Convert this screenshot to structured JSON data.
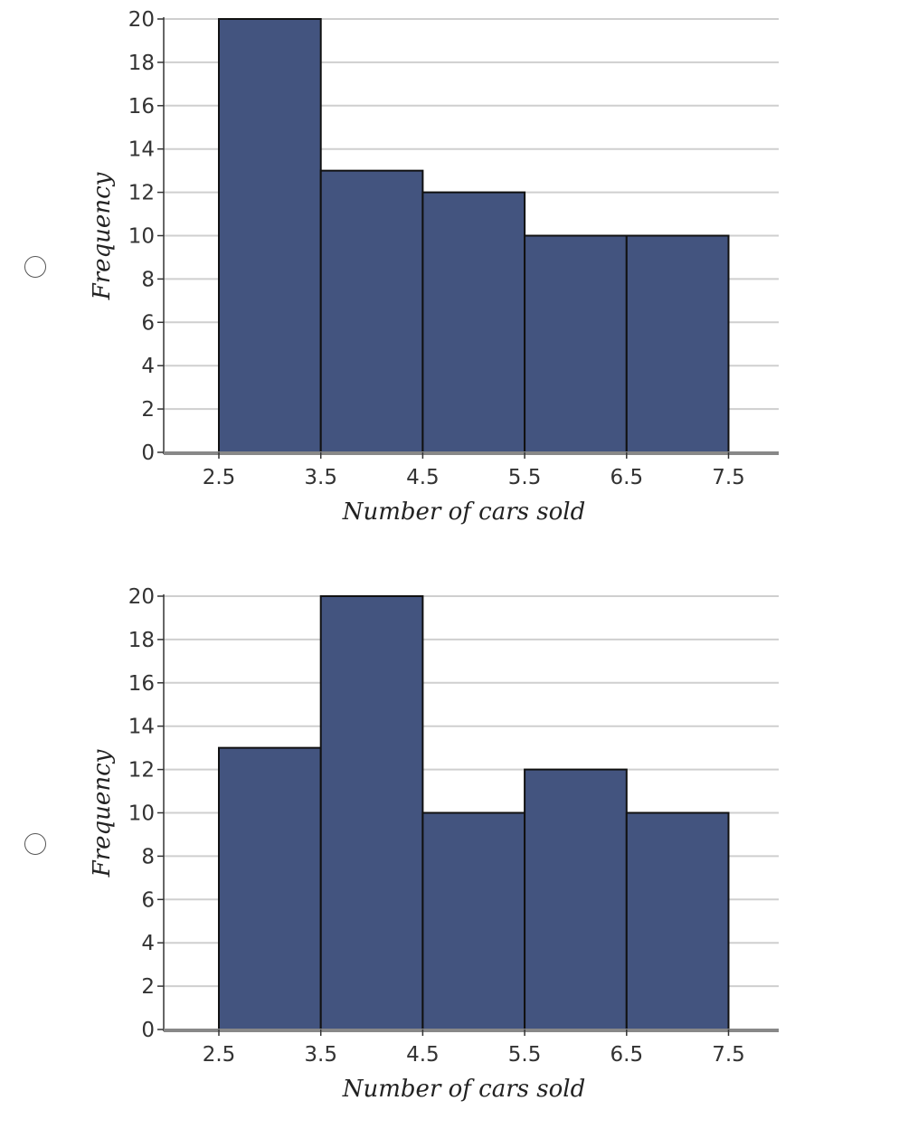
{
  "options": [
    {
      "chart_data": {
        "type": "bar",
        "bin_edges": [
          2.5,
          3.5,
          4.5,
          5.5,
          6.5,
          7.5
        ],
        "values": [
          20,
          13,
          12,
          10,
          10
        ],
        "xlabel": "Number of cars sold",
        "ylabel": "Frequency",
        "xticks": [
          "2.5",
          "3.5",
          "4.5",
          "5.5",
          "6.5",
          "7.5"
        ],
        "yticks": [
          "0",
          "2",
          "4",
          "6",
          "8",
          "10",
          "12",
          "14",
          "16",
          "18",
          "20"
        ],
        "ylim": [
          0,
          20
        ],
        "xlim": [
          2.5,
          7.5
        ],
        "grid": true,
        "bar_color": "#43547f",
        "edge_color": "#111111"
      }
    },
    {
      "chart_data": {
        "type": "bar",
        "bin_edges": [
          2.5,
          3.5,
          4.5,
          5.5,
          6.5,
          7.5
        ],
        "values": [
          13,
          20,
          10,
          12,
          10
        ],
        "xlabel": "Number of cars sold",
        "ylabel": "Frequency",
        "xticks": [
          "2.5",
          "3.5",
          "4.5",
          "5.5",
          "6.5",
          "7.5"
        ],
        "yticks": [
          "0",
          "2",
          "4",
          "6",
          "8",
          "10",
          "12",
          "14",
          "16",
          "18",
          "20"
        ],
        "ylim": [
          0,
          20
        ],
        "xlim": [
          2.5,
          7.5
        ],
        "grid": true,
        "bar_color": "#43547f",
        "edge_color": "#111111"
      }
    }
  ]
}
